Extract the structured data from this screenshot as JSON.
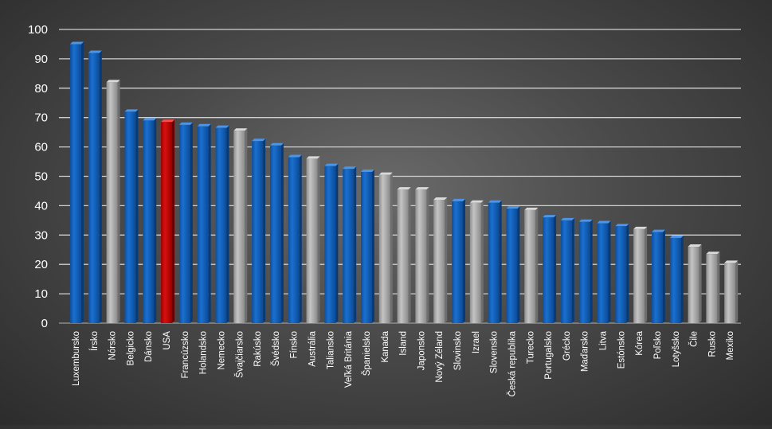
{
  "chart_data": {
    "type": "bar",
    "title": "",
    "xlabel": "",
    "ylabel": "",
    "ylim": [
      0,
      100
    ],
    "yticks": [
      0,
      10,
      20,
      30,
      40,
      50,
      60,
      70,
      80,
      90,
      100
    ],
    "grid": true,
    "legend": "none",
    "colors": {
      "oecd": "#1565c0",
      "other": "#a6a6a6",
      "highlight": "#c00000"
    },
    "categories": [
      "Luxembursko",
      "Írsko",
      "Nórsko",
      "Belgicko",
      "Dánsko",
      "USA",
      "Francúzsko",
      "Holandsko",
      "Nemecko",
      "Švajčiarsko",
      "Rakúsko",
      "Švédsko",
      "Fínsko",
      "Austrália",
      "Taliansko",
      "Veľká Británia",
      "Španielsko",
      "Kanada",
      "Island",
      "Japonsko",
      "Nový Zéland",
      "Slovinsko",
      "Izrael",
      "Slovensko",
      "Česká republika",
      "Turecko",
      "Portugalsko",
      "Grécko",
      "Maďarsko",
      "Litva",
      "Estónsko",
      "Kórea",
      "Poľsko",
      "Lotyšsko",
      "Čile",
      "Rusko",
      "Mexiko"
    ],
    "values": [
      95,
      92,
      82,
      72,
      69,
      68.5,
      67.5,
      67,
      66.5,
      65.5,
      62,
      60.5,
      56.5,
      56,
      53.5,
      52.5,
      51.5,
      50.5,
      45.5,
      45.5,
      42,
      41.5,
      41,
      41,
      39,
      38.5,
      36,
      35,
      34.5,
      34,
      33,
      32,
      31,
      29,
      26,
      23.5,
      20.5
    ],
    "bar_groups": [
      "oecd",
      "oecd",
      "other",
      "oecd",
      "oecd",
      "highlight",
      "oecd",
      "oecd",
      "oecd",
      "other",
      "oecd",
      "oecd",
      "oecd",
      "other",
      "oecd",
      "oecd",
      "oecd",
      "other",
      "other",
      "other",
      "other",
      "oecd",
      "other",
      "oecd",
      "oecd",
      "other",
      "oecd",
      "oecd",
      "oecd",
      "oecd",
      "oecd",
      "other",
      "oecd",
      "oecd",
      "other",
      "other",
      "other"
    ]
  }
}
